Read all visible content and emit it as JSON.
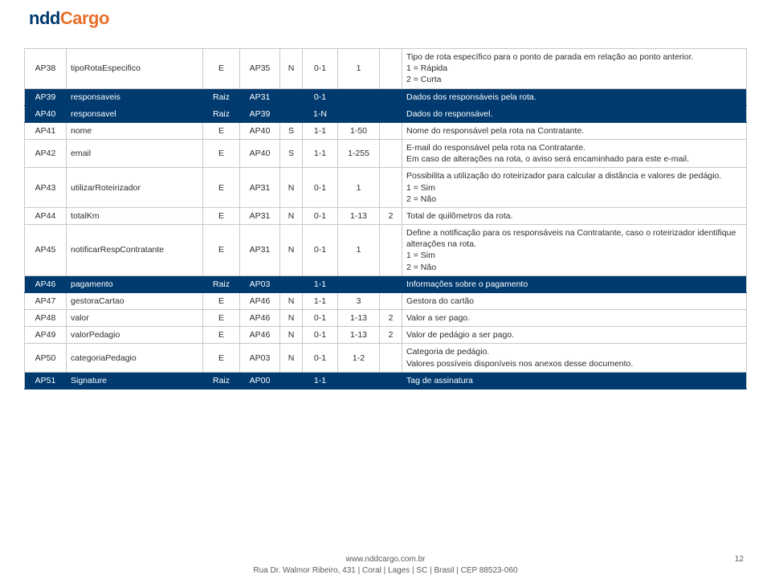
{
  "logo": {
    "part1": "ndd",
    "part2": "Cargo"
  },
  "colors": {
    "highlight_bg": "#003a6f",
    "highlight_fg": "#ffffff",
    "border": "#c8c8c8",
    "accent": "#e8702a"
  },
  "rows": [
    {
      "id": "AP38",
      "name": "tipoRotaEspecifico",
      "t": "E",
      "pai": "AP35",
      "req": "N",
      "occ": "0-1",
      "len": "1",
      "dec": "",
      "desc": "Tipo de rota específico para o ponto de parada em relação ao ponto anterior.\n1 = Rápida\n2 = Curta",
      "hl": false
    },
    {
      "id": "AP39",
      "name": "responsaveis",
      "t": "Raiz",
      "pai": "AP31",
      "req": "",
      "occ": "0-1",
      "len": "",
      "dec": "",
      "desc": "Dados dos responsáveis pela rota.",
      "hl": true
    },
    {
      "id": "AP40",
      "name": "responsavel",
      "t": "Raiz",
      "pai": "AP39",
      "req": "",
      "occ": "1-N",
      "len": "",
      "dec": "",
      "desc": "Dados do responsável.",
      "hl": true
    },
    {
      "id": "AP41",
      "name": "nome",
      "t": "E",
      "pai": "AP40",
      "req": "S",
      "occ": "1-1",
      "len": "1-50",
      "dec": "",
      "desc": "Nome do responsável pela rota na Contratante.",
      "hl": false
    },
    {
      "id": "AP42",
      "name": "email",
      "t": "E",
      "pai": "AP40",
      "req": "S",
      "occ": "1-1",
      "len": "1-255",
      "dec": "",
      "desc": "E-mail do responsável pela rota na Contratante.\nEm caso de alterações na rota, o aviso será encaminhado para este e-mail.",
      "hl": false
    },
    {
      "id": "AP43",
      "name": "utilizarRoteirizador",
      "t": "E",
      "pai": "AP31",
      "req": "N",
      "occ": "0-1",
      "len": "1",
      "dec": "",
      "desc": "Possibilita a utilização do roteirizador para calcular a distância e valores de pedágio.\n1 = Sim\n2 = Não",
      "hl": false
    },
    {
      "id": "AP44",
      "name": "totalKm",
      "t": "E",
      "pai": "AP31",
      "req": "N",
      "occ": "0-1",
      "len": "1-13",
      "dec": "2",
      "desc": "Total de quilômetros da rota.",
      "hl": false
    },
    {
      "id": "AP45",
      "name": "notificarRespContratante",
      "t": "E",
      "pai": "AP31",
      "req": "N",
      "occ": "0-1",
      "len": "1",
      "dec": "",
      "desc": "Define a notificação para os responsáveis na Contratante, caso o roteirizador identifique alterações na rota.\n1 = Sim\n2 = Não",
      "hl": false
    },
    {
      "id": "AP46",
      "name": "pagamento",
      "t": "Raiz",
      "pai": "AP03",
      "req": "",
      "occ": "1-1",
      "len": "",
      "dec": "",
      "desc": "Informações sobre o pagamento",
      "hl": true
    },
    {
      "id": "AP47",
      "name": "gestoraCartao",
      "t": "E",
      "pai": "AP46",
      "req": "N",
      "occ": "1-1",
      "len": "3",
      "dec": "",
      "desc": "Gestora do cartão",
      "hl": false
    },
    {
      "id": "AP48",
      "name": "valor",
      "t": "E",
      "pai": "AP46",
      "req": "N",
      "occ": "0-1",
      "len": "1-13",
      "dec": "2",
      "desc": "Valor a ser pago.",
      "hl": false
    },
    {
      "id": "AP49",
      "name": "valorPedagio",
      "t": "E",
      "pai": "AP46",
      "req": "N",
      "occ": "0-1",
      "len": "1-13",
      "dec": "2",
      "desc": "Valor de pedágio a ser pago.",
      "hl": false
    },
    {
      "id": "AP50",
      "name": "categoriaPedagio",
      "t": "E",
      "pai": "AP03",
      "req": "N",
      "occ": "0-1",
      "len": "1-2",
      "dec": "",
      "desc": "Categoria de pedágio.\nValores possíveis disponíveis nos anexos desse documento.",
      "hl": false
    },
    {
      "id": "AP51",
      "name": "Signature",
      "t": "Raiz",
      "pai": "AP00",
      "req": "",
      "occ": "1-1",
      "len": "",
      "dec": "",
      "desc": "Tag de assinatura",
      "hl": true
    }
  ],
  "footer": {
    "line1": "www.nddcargo.com.br",
    "line2": "Rua Dr. Walmor Ribeiro, 431 | Coral | Lages | SC | Brasil | CEP 88523-060"
  },
  "page_number": "12"
}
